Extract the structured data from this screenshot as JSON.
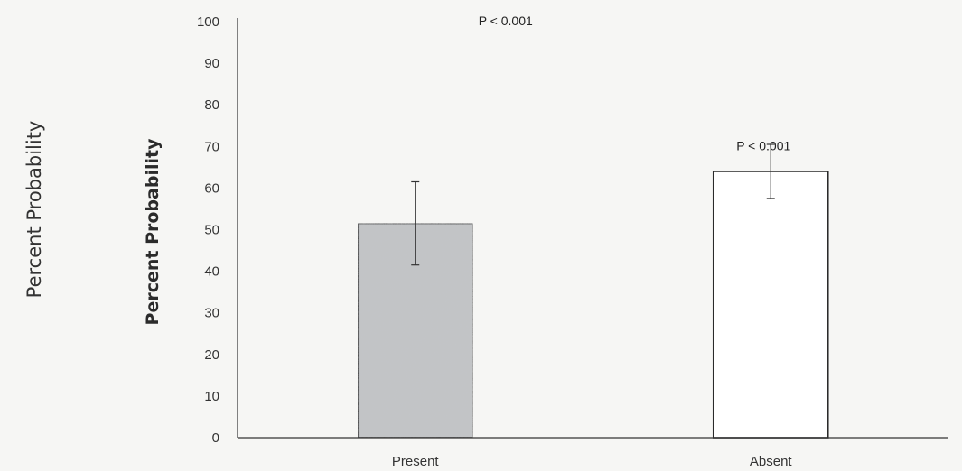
{
  "chart_data": {
    "type": "bar",
    "categories": [
      "Present",
      "Absent"
    ],
    "values": [
      51.5,
      64
    ],
    "errors": [
      {
        "low": 41.5,
        "high": 61.5
      },
      {
        "low": 57.5,
        "high": 70.5
      }
    ],
    "bar_colors": [
      "#c2c4c6",
      "#ffffff"
    ],
    "ylabel": "Percent Probability",
    "ylabel_outer": "Percent Probability",
    "ylim": [
      0,
      100
    ],
    "yticks": [
      "0",
      "10",
      "20",
      "30",
      "40",
      "50",
      "60",
      "70",
      "80",
      "90",
      "100"
    ],
    "annotations": [
      {
        "text": "P < 0.001",
        "x_category_pos": -0.5,
        "y": 100
      },
      {
        "text": "P < 0.001",
        "x_category_pos": 0.5,
        "y": 70
      }
    ],
    "grid": false
  }
}
